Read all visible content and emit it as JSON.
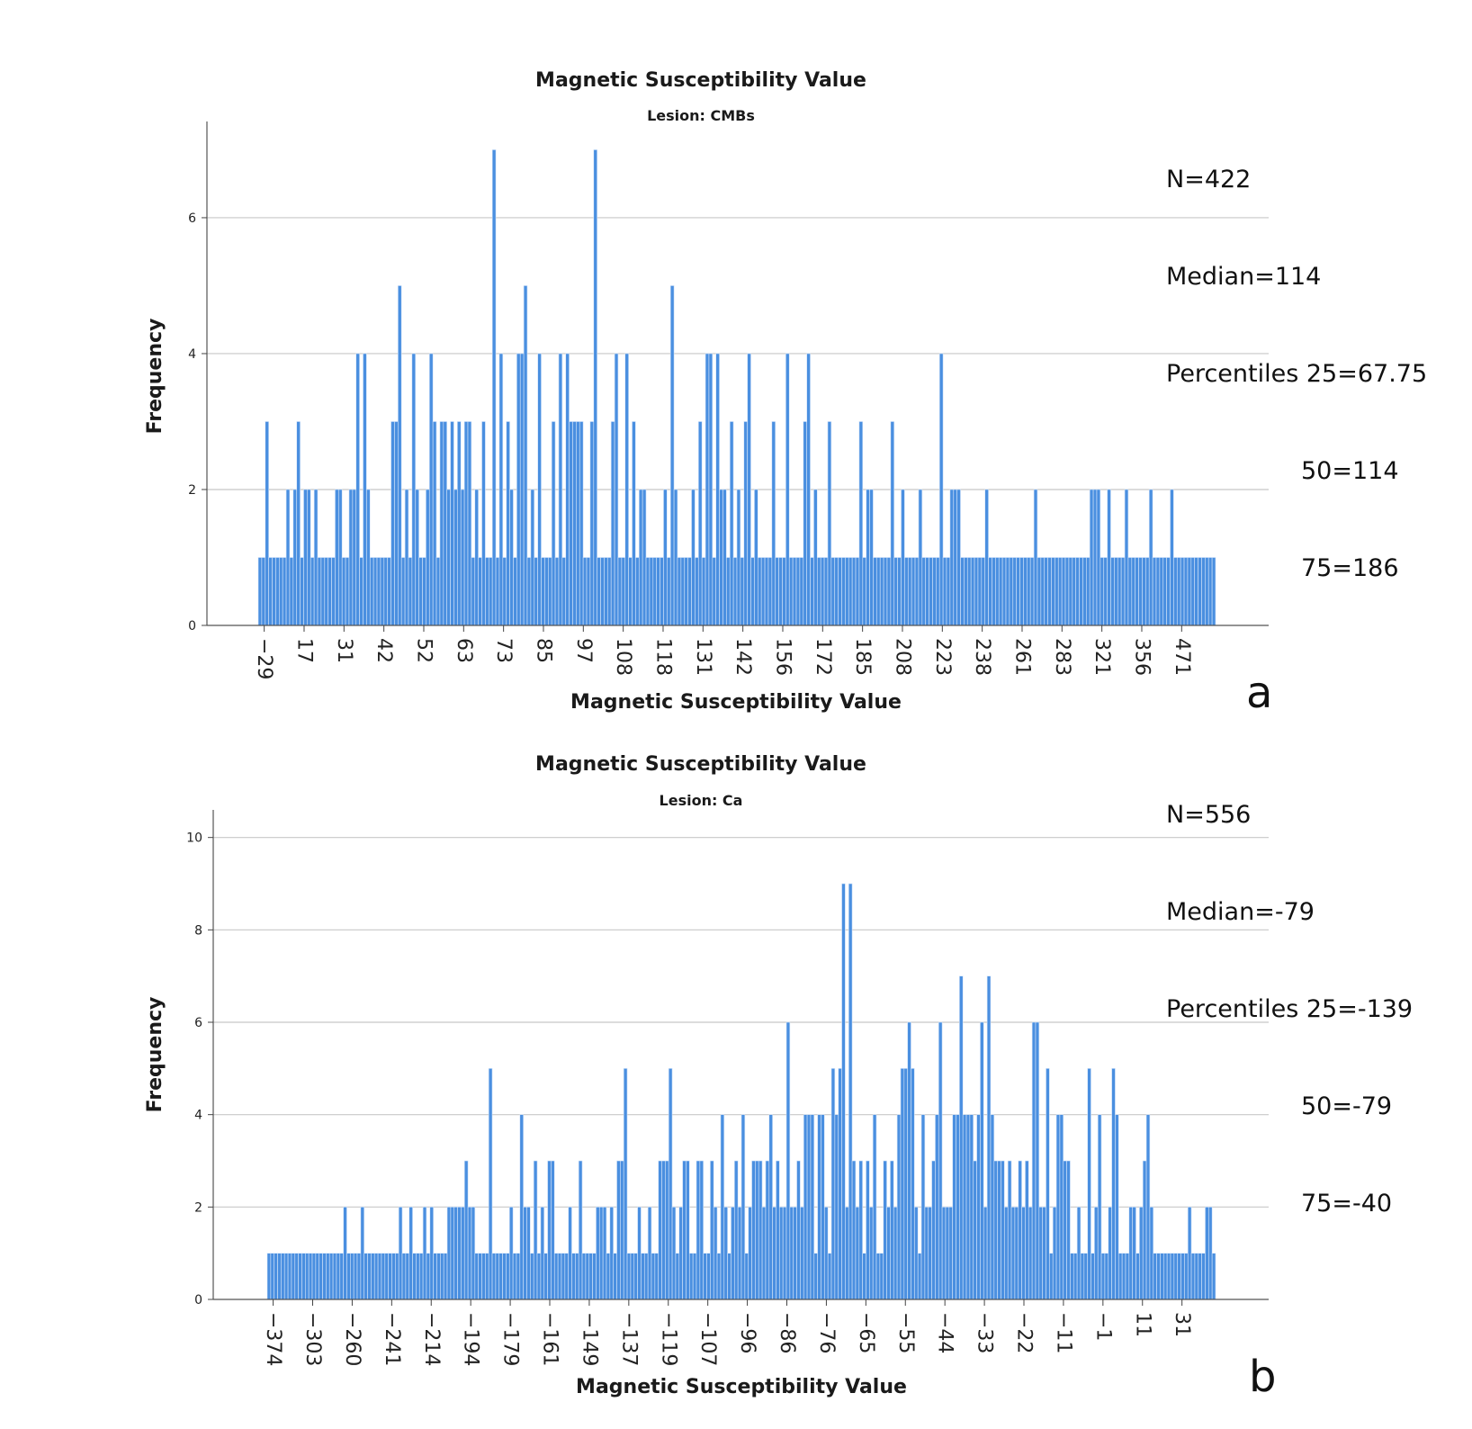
{
  "chart_data": [
    {
      "type": "bar",
      "panel": "a",
      "title": "Magnetic Susceptibility Value",
      "subtitle": "Lesion: CMBs",
      "xlabel": "Magnetic Susceptibility Value",
      "ylabel": "Frequency",
      "ylim": [
        0,
        7.35
      ],
      "yticks": [
        0,
        2,
        4,
        6
      ],
      "grid": true,
      "bar_color": "#4a8fe0",
      "xtick_labels": [
        "-29",
        "17",
        "31",
        "42",
        "52",
        "63",
        "73",
        "85",
        "97",
        "108",
        "118",
        "131",
        "142",
        "156",
        "172",
        "185",
        "208",
        "223",
        "238",
        "261",
        "283",
        "321",
        "356",
        "471"
      ],
      "values": [
        1,
        1,
        3,
        1,
        1,
        1,
        1,
        1,
        2,
        1,
        2,
        3,
        1,
        2,
        2,
        1,
        2,
        1,
        1,
        1,
        1,
        1,
        2,
        2,
        1,
        1,
        2,
        2,
        4,
        1,
        4,
        2,
        1,
        1,
        1,
        1,
        1,
        1,
        3,
        3,
        5,
        1,
        2,
        1,
        4,
        2,
        1,
        1,
        2,
        4,
        3,
        1,
        3,
        3,
        2,
        3,
        2,
        3,
        2,
        3,
        3,
        1,
        2,
        1,
        3,
        1,
        1,
        7,
        1,
        4,
        1,
        3,
        2,
        1,
        4,
        4,
        5,
        1,
        2,
        1,
        4,
        1,
        1,
        1,
        3,
        1,
        4,
        1,
        4,
        3,
        3,
        3,
        3,
        1,
        1,
        3,
        7,
        1,
        1,
        1,
        1,
        3,
        4,
        1,
        1,
        4,
        1,
        3,
        1,
        2,
        2,
        1,
        1,
        1,
        1,
        1,
        2,
        1,
        5,
        2,
        1,
        1,
        1,
        1,
        2,
        1,
        3,
        1,
        4,
        4,
        1,
        4,
        2,
        2,
        1,
        3,
        1,
        2,
        1,
        3,
        4,
        1,
        2,
        1,
        1,
        1,
        1,
        3,
        1,
        1,
        1,
        4,
        1,
        1,
        1,
        1,
        3,
        4,
        1,
        2,
        1,
        1,
        1,
        3,
        1,
        1,
        1,
        1,
        1,
        1,
        1,
        1,
        3,
        1,
        2,
        2,
        1,
        1,
        1,
        1,
        1,
        3,
        1,
        1,
        2,
        1,
        1,
        1,
        1,
        2,
        1,
        1,
        1,
        1,
        1,
        4,
        1,
        1,
        2,
        2,
        2,
        1,
        1,
        1,
        1,
        1,
        1,
        1,
        2,
        1,
        1,
        1,
        1,
        1,
        1,
        1,
        1,
        1,
        1,
        1,
        1,
        1,
        2,
        1,
        1,
        1,
        1,
        1,
        1,
        1,
        1,
        1,
        1,
        1,
        1,
        1,
        1,
        1,
        2,
        2,
        2,
        1,
        1,
        2,
        1,
        1,
        1,
        1,
        2,
        1,
        1,
        1,
        1,
        1,
        1,
        2,
        1,
        1,
        1,
        1,
        1,
        2,
        1,
        1,
        1,
        1,
        1,
        1,
        1,
        1,
        1,
        1,
        1,
        1
      ],
      "stats": {
        "n": "N=422",
        "median": "Median=114",
        "p25": "Percentiles 25=67.75",
        "p50": "50=114",
        "p75": "75=186"
      }
    },
    {
      "type": "bar",
      "panel": "b",
      "title": "Magnetic Susceptibility Value",
      "subtitle": "Lesion: Ca",
      "xlabel": "Magnetic Susceptibility Value",
      "ylabel": "Frequency",
      "ylim": [
        0,
        10.5
      ],
      "yticks": [
        0,
        2,
        4,
        6,
        8,
        10
      ],
      "grid": true,
      "bar_color": "#4a8fe0",
      "xtick_labels": [
        "-374",
        "-303",
        "-260",
        "-241",
        "-214",
        "-194",
        "-179",
        "-161",
        "-149",
        "-137",
        "-119",
        "-107",
        "-96",
        "-86",
        "-76",
        "-65",
        "-55",
        "-44",
        "-33",
        "-22",
        "-11",
        "-1",
        "11",
        "31"
      ],
      "values": [
        1,
        1,
        1,
        1,
        1,
        1,
        1,
        1,
        1,
        1,
        1,
        1,
        1,
        1,
        1,
        1,
        1,
        1,
        1,
        1,
        1,
        1,
        2,
        1,
        1,
        1,
        1,
        2,
        1,
        1,
        1,
        1,
        1,
        1,
        1,
        1,
        1,
        1,
        2,
        1,
        1,
        2,
        1,
        1,
        1,
        2,
        1,
        2,
        1,
        1,
        1,
        1,
        2,
        2,
        2,
        2,
        2,
        3,
        2,
        2,
        1,
        1,
        1,
        1,
        5,
        1,
        1,
        1,
        1,
        1,
        2,
        1,
        1,
        4,
        2,
        2,
        1,
        3,
        1,
        2,
        1,
        3,
        3,
        1,
        1,
        1,
        1,
        2,
        1,
        1,
        3,
        1,
        1,
        1,
        1,
        2,
        2,
        2,
        1,
        2,
        1,
        3,
        3,
        5,
        1,
        1,
        1,
        2,
        1,
        1,
        2,
        1,
        1,
        3,
        3,
        3,
        5,
        2,
        1,
        2,
        3,
        3,
        1,
        1,
        3,
        3,
        1,
        1,
        3,
        2,
        1,
        4,
        2,
        1,
        2,
        3,
        2,
        4,
        1,
        2,
        3,
        3,
        3,
        2,
        3,
        4,
        2,
        3,
        2,
        2,
        6,
        2,
        2,
        3,
        2,
        4,
        4,
        4,
        1,
        4,
        4,
        2,
        1,
        5,
        4,
        5,
        9,
        2,
        9,
        3,
        2,
        3,
        1,
        3,
        2,
        4,
        1,
        1,
        3,
        2,
        3,
        2,
        4,
        5,
        5,
        6,
        5,
        2,
        1,
        4,
        2,
        2,
        3,
        4,
        6,
        2,
        2,
        2,
        4,
        4,
        7,
        4,
        4,
        4,
        3,
        4,
        6,
        2,
        7,
        4,
        3,
        3,
        3,
        2,
        3,
        2,
        2,
        3,
        2,
        3,
        2,
        6,
        6,
        2,
        2,
        5,
        1,
        2,
        4,
        4,
        3,
        3,
        1,
        1,
        2,
        1,
        1,
        5,
        1,
        2,
        4,
        1,
        1,
        2,
        5,
        4,
        1,
        1,
        1,
        2,
        2,
        1,
        2,
        3,
        4,
        2,
        1,
        1,
        1,
        1,
        1,
        1,
        1,
        1,
        1,
        1,
        2,
        1,
        1,
        1,
        1,
        2,
        2,
        1
      ],
      "stats": {
        "n": "N=556",
        "median": "Median=-79",
        "p25": "Percentiles 25=-139",
        "p50": "50=-79",
        "p75": "75=-40"
      }
    }
  ],
  "panel_labels": [
    "a",
    "b"
  ]
}
